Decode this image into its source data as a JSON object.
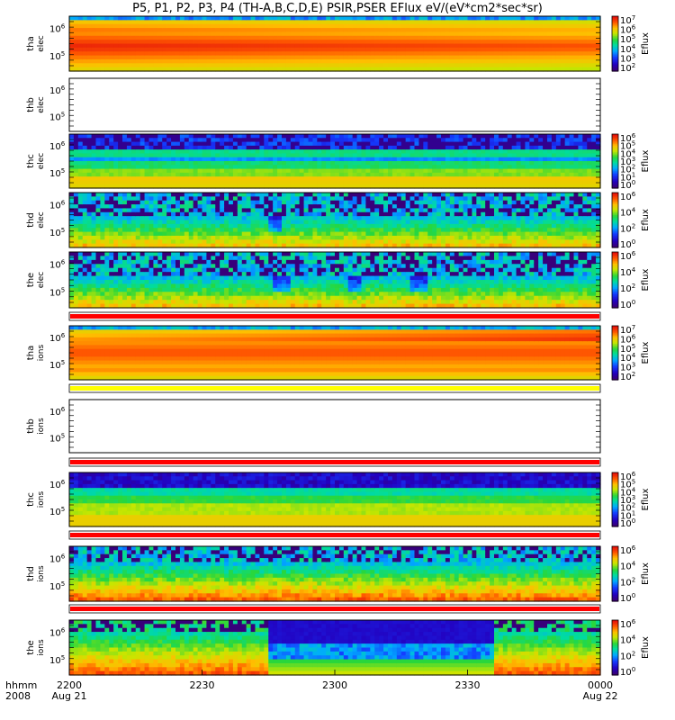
{
  "figure": {
    "title": "P5, P1, P2, P3, P4 (TH-A,B,C,D,E) PSIR,PSER EFlux eV/(eV*cm2*sec*sr)",
    "xaxis": {
      "row1_label": "hhmm",
      "row2_label": "2008",
      "ticks": [
        {
          "hhmm": "2200",
          "date": "Aug 21",
          "t": 0
        },
        {
          "hhmm": "2230",
          "date": "",
          "t": 30
        },
        {
          "hhmm": "2300",
          "date": "",
          "t": 60
        },
        {
          "hhmm": "2330",
          "date": "",
          "t": 90
        },
        {
          "hhmm": "0000",
          "date": "Aug 22",
          "t": 120
        }
      ]
    }
  },
  "chart_data": {
    "type": "heatmap",
    "x_units": "minutes after 2008-08-21 22:00",
    "xlim": [
      0,
      120
    ],
    "colorbar_label": "Eflux",
    "panels": [
      {
        "name": "thc_e",
        "probe": "tha",
        "species": "elec",
        "empty": false,
        "ytick_exps": [
          6,
          5
        ],
        "cbar_exps": [
          2,
          3,
          4,
          5,
          6,
          7
        ],
        "style": "smooth",
        "status_bar": null
      },
      {
        "name": "thb_e",
        "probe": "thb",
        "species": "elec",
        "empty": true,
        "ytick_exps": [
          6,
          5
        ],
        "cbar_exps": null,
        "style": null,
        "status_bar": null
      },
      {
        "name": "thc_e2",
        "probe": "thc",
        "species": "elec",
        "empty": false,
        "ytick_exps": [
          6,
          5
        ],
        "cbar_exps": [
          0,
          1,
          2,
          3,
          4,
          5,
          6
        ],
        "style": "banded",
        "status_bar": null
      },
      {
        "name": "thd_e",
        "probe": "thd",
        "species": "elec",
        "empty": false,
        "ytick_exps": [
          6,
          5
        ],
        "cbar_exps": [
          0,
          2,
          4,
          6
        ],
        "style": "noisy_dip",
        "status_bar": null
      },
      {
        "name": "the_e",
        "probe": "the",
        "species": "elec",
        "empty": false,
        "ytick_exps": [
          6,
          5
        ],
        "cbar_exps": [
          0,
          2,
          4,
          6
        ],
        "style": "noisy_dips",
        "status_bar": null
      },
      {
        "name": "tha_i",
        "probe": "tha",
        "species": "ions",
        "empty": false,
        "ytick_exps": [
          6,
          5
        ],
        "cbar_exps": [
          2,
          3,
          4,
          5,
          6,
          7
        ],
        "style": "smooth_warm",
        "status_bar": "red"
      },
      {
        "name": "thb_i",
        "probe": "thb",
        "species": "ions",
        "empty": true,
        "ytick_exps": [
          6,
          5
        ],
        "cbar_exps": null,
        "style": null,
        "status_bar": "yellow"
      },
      {
        "name": "thc_i",
        "probe": "thc",
        "species": "ions",
        "empty": false,
        "ytick_exps": [
          6,
          5
        ],
        "cbar_exps": [
          0,
          1,
          2,
          3,
          4,
          5,
          6
        ],
        "style": "banded_ions",
        "status_bar": "red"
      },
      {
        "name": "thd_i",
        "probe": "thd",
        "species": "ions",
        "empty": false,
        "ytick_exps": [
          6,
          5
        ],
        "cbar_exps": [
          0,
          2,
          4,
          6
        ],
        "style": "noisy_ions",
        "status_bar": "red"
      },
      {
        "name": "the_i",
        "probe": "the",
        "species": "ions",
        "empty": false,
        "ytick_exps": [
          6,
          5
        ],
        "cbar_exps": [
          0,
          2,
          4,
          6
        ],
        "style": "block_ions",
        "status_bar": "red"
      }
    ]
  }
}
